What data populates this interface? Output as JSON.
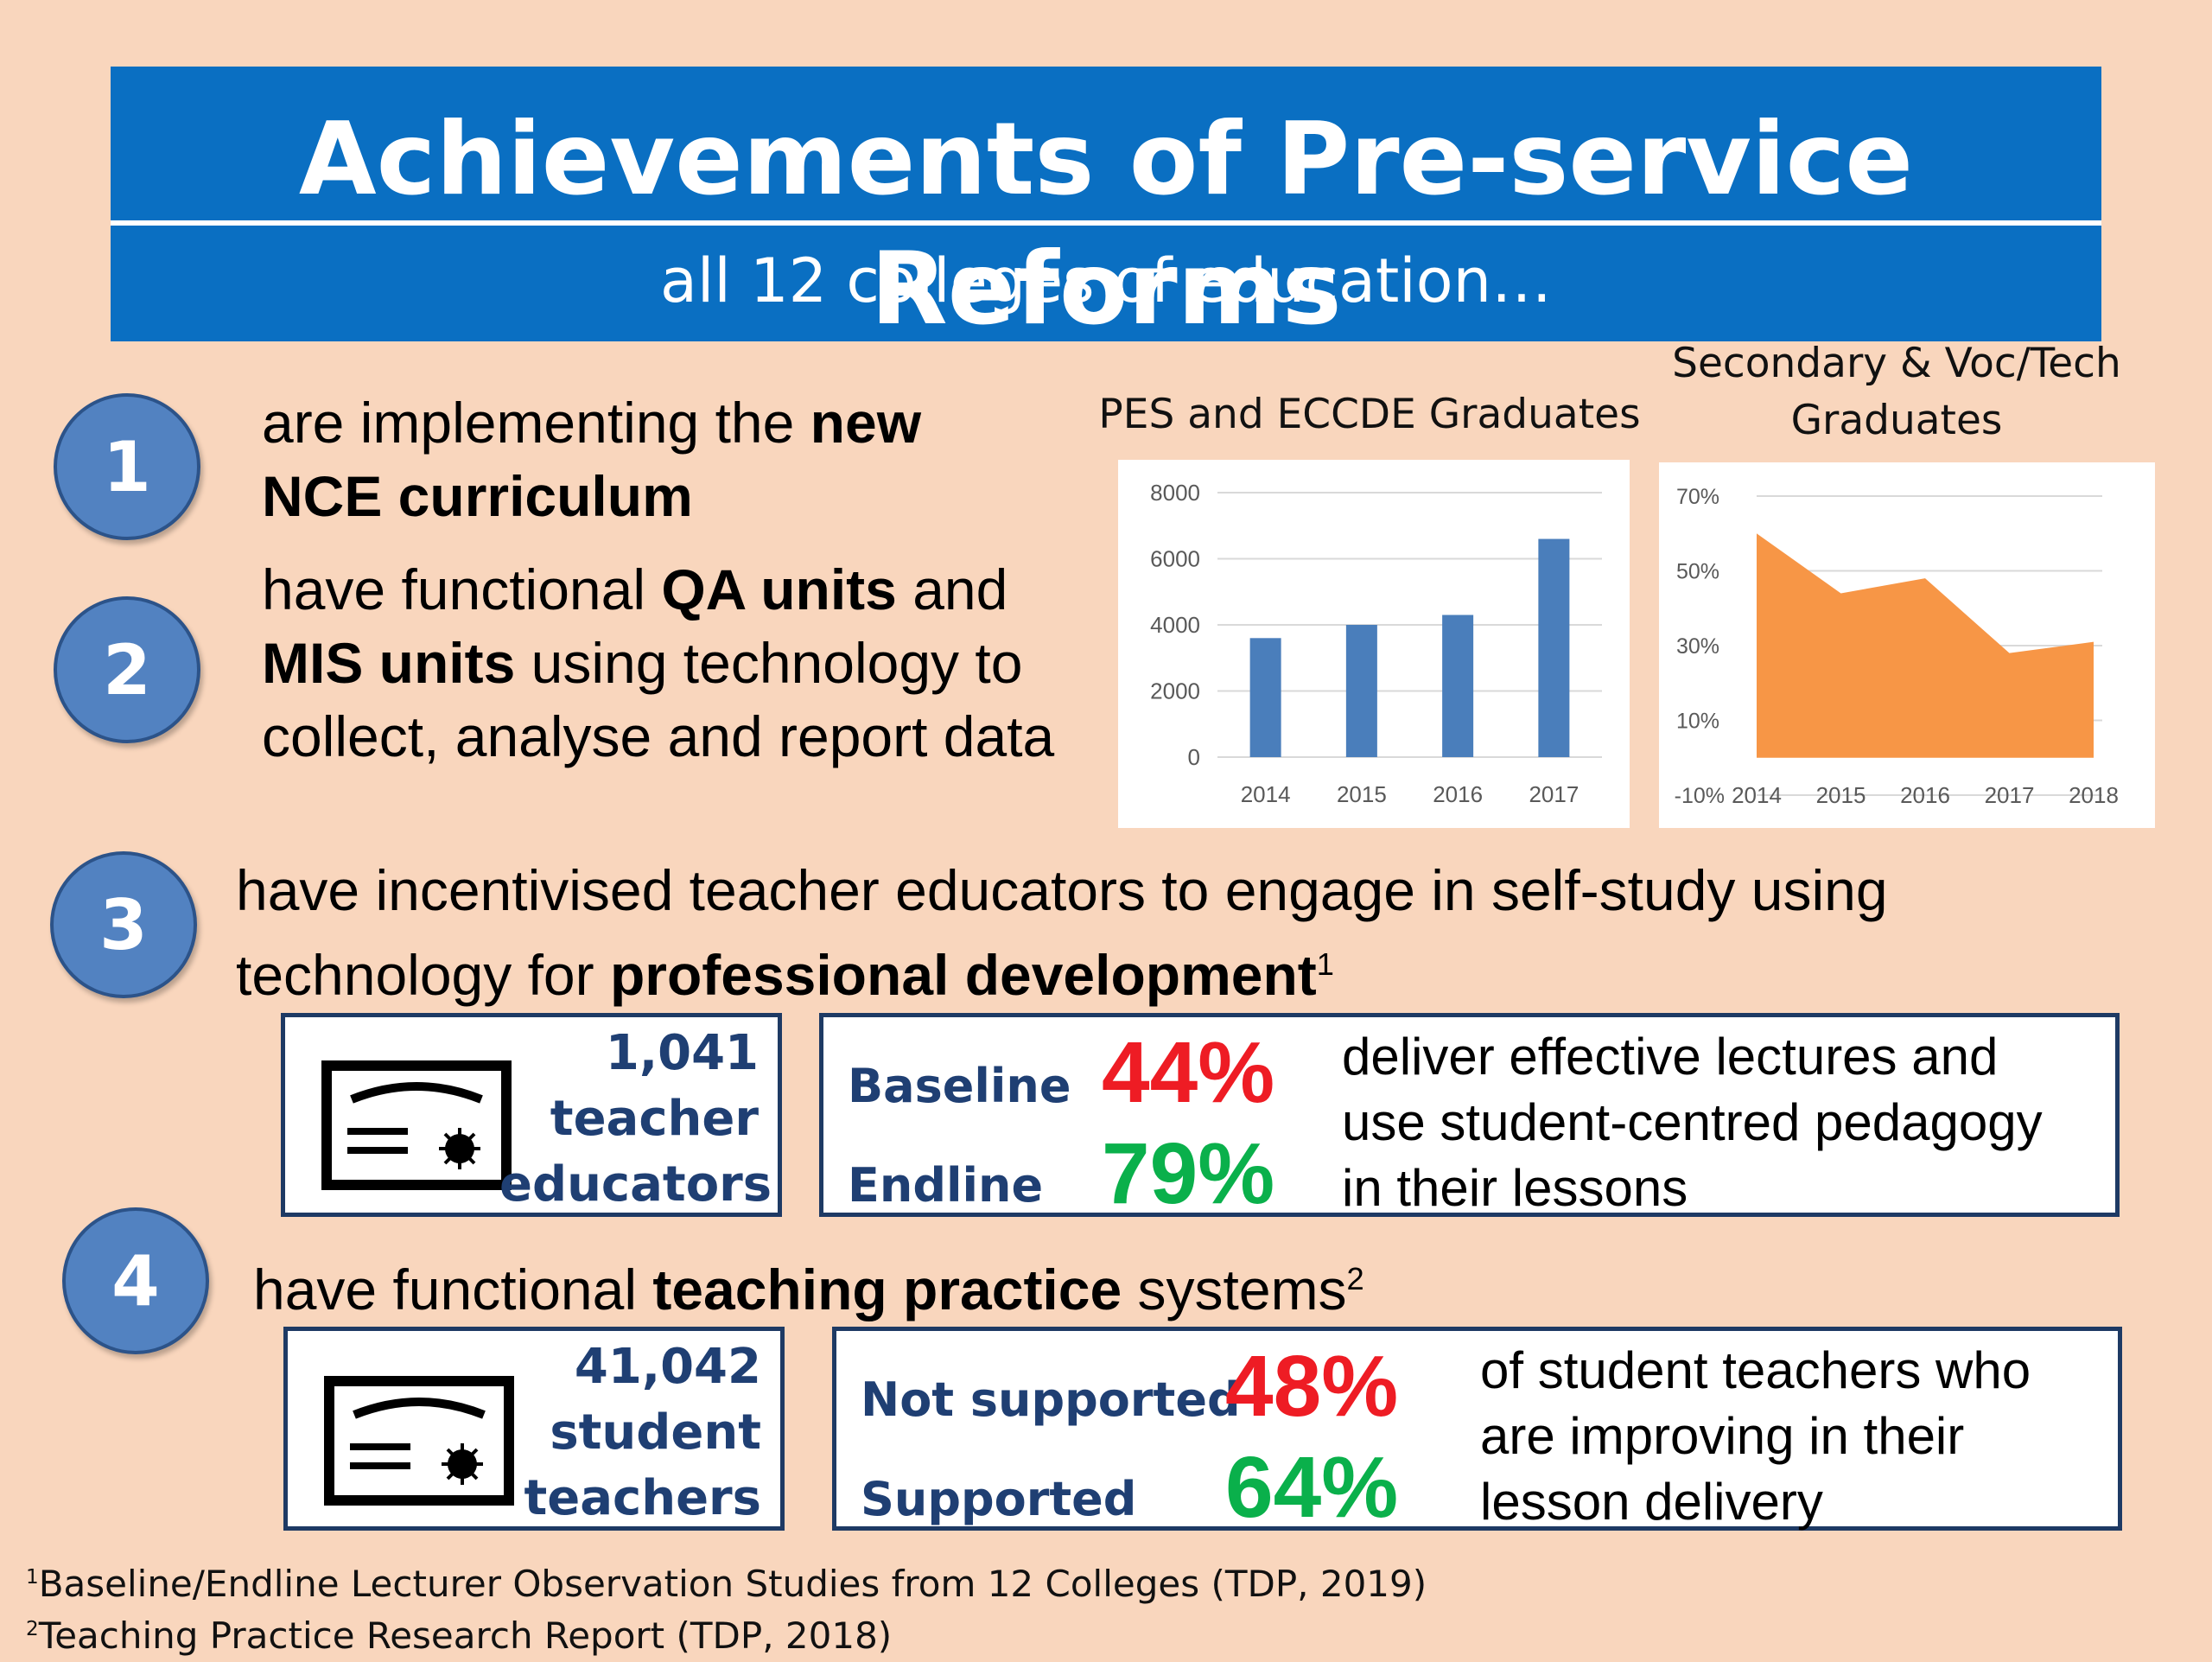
{
  "header": {
    "title": "Achievements of Pre-service Reforms",
    "subtitle": "all 12 colleges of education…"
  },
  "items": [
    {
      "number": "1",
      "parts": [
        {
          "t": "are implementing the "
        },
        {
          "t": "new NCE curriculum",
          "b": true
        }
      ]
    },
    {
      "number": "2",
      "parts": [
        {
          "t": "have functional "
        },
        {
          "t": "QA units",
          "b": true
        },
        {
          "t": " and "
        },
        {
          "t": "MIS units",
          "b": true
        },
        {
          "t": " using technology to collect, analyse and report data"
        }
      ]
    },
    {
      "number": "3",
      "parts": [
        {
          "t": "have incentivised teacher educators to engage in self-study using technology for "
        },
        {
          "t": "professional development",
          "b": true
        },
        {
          "t": "1",
          "sup": true
        }
      ]
    },
    {
      "number": "4",
      "parts": [
        {
          "t": "have functional "
        },
        {
          "t": "teaching practice",
          "b": true
        },
        {
          "t": " systems"
        },
        {
          "t": "2",
          "sup": true
        }
      ]
    }
  ],
  "stats": [
    {
      "count": "1,041",
      "unit_line1": "teacher",
      "unit_line2": "educators",
      "label1": "Baseline",
      "value1": "44%",
      "label2": "Endline",
      "value2": "79%",
      "desc_lines": [
        "deliver effective lectures and",
        "use student-centred pedagogy",
        "in their lessons"
      ]
    },
    {
      "count": "41,042",
      "unit_line1": "student",
      "unit_line2": "teachers",
      "label1": "Not supported",
      "value1": "48%",
      "label2": "Supported",
      "value2": "64%",
      "desc_lines": [
        "of student teachers who",
        "are improving in their",
        "lesson delivery"
      ]
    }
  ],
  "colors": {
    "banner": "#0a6fc2",
    "circle": "#5282c1",
    "bar": "#4a7ebb",
    "area": "#f79646",
    "red": "#ee1c24",
    "green": "#0ab04b"
  },
  "icons": [
    "certificate-icon"
  ],
  "chart_data": [
    {
      "type": "bar",
      "title": "PES and ECCDE Graduates",
      "categories": [
        "2014",
        "2015",
        "2016",
        "2017"
      ],
      "values": [
        3600,
        4000,
        4300,
        6600
      ],
      "ylim": [
        0,
        8000
      ],
      "yticks": [
        "0",
        "2000",
        "4000",
        "6000",
        "8000"
      ],
      "grid": true
    },
    {
      "type": "area",
      "title": "Secondary & Voc/Tech Graduates",
      "categories": [
        "2014",
        "2015",
        "2016",
        "2017",
        "2018"
      ],
      "values": [
        60,
        44,
        48,
        28,
        31
      ],
      "ylim": [
        -10,
        70
      ],
      "yticks": [
        "-10%",
        "10%",
        "30%",
        "50%",
        "70%"
      ],
      "grid": true
    }
  ],
  "footnotes": [
    {
      "mark": "1",
      "text": "Baseline/Endline Lecturer Observation Studies from 12 Colleges (TDP, 2019)"
    },
    {
      "mark": "2",
      "text": "Teaching Practice Research Report (TDP, 2018)"
    }
  ]
}
